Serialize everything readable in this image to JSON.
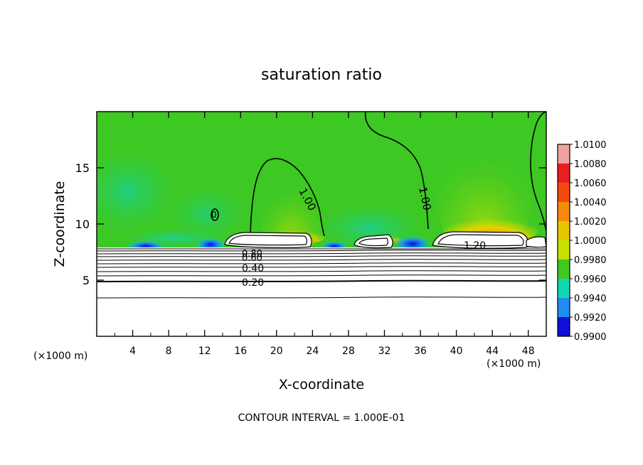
{
  "chart_data": {
    "type": "heatmap",
    "title": "saturation ratio",
    "xlabel": "X-coordinate",
    "ylabel": "Z-coordinate",
    "x_unit_left": "(×1000 m)",
    "x_unit_right": "(×1000 m)",
    "x_ticks": [
      4,
      8,
      12,
      16,
      20,
      24,
      28,
      32,
      36,
      40,
      44,
      48
    ],
    "y_ticks": [
      5,
      10,
      15
    ],
    "xlim": [
      0,
      50
    ],
    "ylim": [
      0,
      20
    ],
    "footer": "CONTOUR INTERVAL = 1.000E-01",
    "colorbar": {
      "labels": [
        "1.0100",
        "1.0080",
        "1.0060",
        "1.0040",
        "1.0020",
        "1.0000",
        "0.9980",
        "0.9960",
        "0.9940",
        "0.9920",
        "0.9900"
      ],
      "colors": [
        "#f2a1a1",
        "#e82020",
        "#f24a0e",
        "#f58a0a",
        "#e6c800",
        "#c8e000",
        "#3fc81e",
        "#12d7b4",
        "#1e8ef0",
        "#1010d8",
        "#5a0c96"
      ]
    },
    "contour_labels": [
      {
        "text": "1.00",
        "x": 19.7,
        "z": 13.4
      },
      {
        "text": "1.00",
        "x": 36.3,
        "z": 12.3
      },
      {
        "text": "1.20",
        "x": 42.2,
        "z": 8.6
      },
      {
        "text": "0.80",
        "x": 17.6,
        "z": 7.3
      },
      {
        "text": "0.60",
        "x": 17.6,
        "z": 6.9
      },
      {
        "text": "0.40",
        "x": 17.6,
        "z": 6.0
      },
      {
        "text": "0.20",
        "x": 17.6,
        "z": 4.8
      }
    ],
    "small_contour_label": {
      "text": "0",
      "x": 13.3,
      "z": 10.9
    }
  }
}
